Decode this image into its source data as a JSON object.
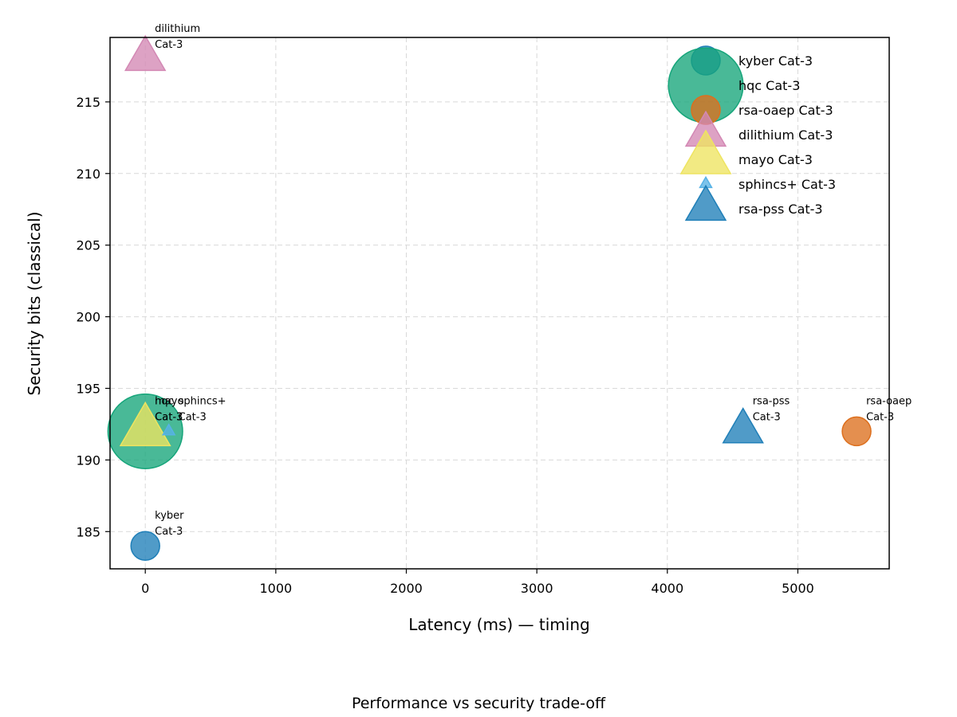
{
  "chart_data": {
    "type": "scatter",
    "title": "",
    "caption": "Performance vs security trade-off",
    "xlabel": "Latency (ms) — timing",
    "ylabel": "Security bits (classical)",
    "xlim": [
      -270,
      5700
    ],
    "ylim": [
      182.4,
      219.5
    ],
    "xticks": [
      0,
      1000,
      2000,
      3000,
      4000,
      5000
    ],
    "yticks": [
      185,
      190,
      195,
      200,
      205,
      210,
      215
    ],
    "grid": true,
    "legend_position": "top-right",
    "points": [
      {
        "name": "kyber Cat-3",
        "algorithm": "kyber",
        "category": "Cat-3",
        "x": 0,
        "y": 184,
        "marker": "circle",
        "size": 1.0,
        "color": "#1f7fb8"
      },
      {
        "name": "hqc Cat-3",
        "algorithm": "hqc",
        "category": "Cat-3",
        "x": 0,
        "y": 192,
        "marker": "circle",
        "size": 2.6,
        "color": "#16a57a"
      },
      {
        "name": "rsa-oaep Cat-3",
        "algorithm": "rsa-oaep",
        "category": "Cat-3",
        "x": 5450,
        "y": 192,
        "marker": "circle",
        "size": 1.0,
        "color": "#dd6f1d"
      },
      {
        "name": "dilithium Cat-3",
        "algorithm": "dilithium",
        "category": "Cat-3",
        "x": 0,
        "y": 218,
        "marker": "triangle",
        "size": 1.0,
        "color": "#d388b4"
      },
      {
        "name": "mayo Cat-3",
        "algorithm": "mayo",
        "category": "Cat-3",
        "x": 0,
        "y": 192,
        "marker": "triangle",
        "size": 1.25,
        "color": "#eee460"
      },
      {
        "name": "sphincs+ Cat-3",
        "algorithm": "sphincs+",
        "category": "Cat-3",
        "x": 180,
        "y": 192,
        "marker": "triangle",
        "size": 0.3,
        "color": "#57b2e6"
      },
      {
        "name": "rsa-pss Cat-3",
        "algorithm": "rsa-pss",
        "category": "Cat-3",
        "x": 4580,
        "y": 192,
        "marker": "triangle",
        "size": 1.0,
        "color": "#1f7fb8"
      }
    ]
  }
}
